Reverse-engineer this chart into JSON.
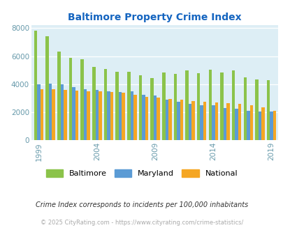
{
  "title": "Baltimore Property Crime Index",
  "years": [
    1999,
    2000,
    2001,
    2002,
    2003,
    2004,
    2005,
    2006,
    2007,
    2008,
    2009,
    2010,
    2011,
    2012,
    2013,
    2014,
    2015,
    2016,
    2017,
    2018,
    2019
  ],
  "baltimore": [
    7800,
    7400,
    6350,
    5900,
    5800,
    5250,
    5100,
    4900,
    4900,
    4650,
    4430,
    4850,
    4750,
    5000,
    4800,
    5050,
    4850,
    5000,
    4500,
    4350,
    4300
  ],
  "maryland": [
    4000,
    4050,
    4000,
    3800,
    3650,
    3600,
    3500,
    3450,
    3500,
    3250,
    3200,
    2900,
    2750,
    2600,
    2500,
    2500,
    2300,
    2250,
    2100,
    2050,
    2050
  ],
  "national": [
    3650,
    3650,
    3600,
    3550,
    3500,
    3500,
    3450,
    3400,
    3250,
    3100,
    3050,
    2950,
    2900,
    2800,
    2750,
    2700,
    2650,
    2600,
    2500,
    2350,
    2100
  ],
  "baltimore_color": "#8bc34a",
  "maryland_color": "#5b9bd5",
  "national_color": "#f5a623",
  "plot_bg": "#ddeef5",
  "title_color": "#1565C0",
  "tick_color": "#6699aa",
  "subtitle": "Crime Index corresponds to incidents per 100,000 inhabitants",
  "footer": "© 2025 CityRating.com - https://www.cityrating.com/crime-statistics/",
  "xtick_years": [
    1999,
    2004,
    2009,
    2014,
    2019
  ],
  "ylim": [
    0,
    8200
  ],
  "yticks": [
    0,
    2000,
    4000,
    6000,
    8000
  ]
}
